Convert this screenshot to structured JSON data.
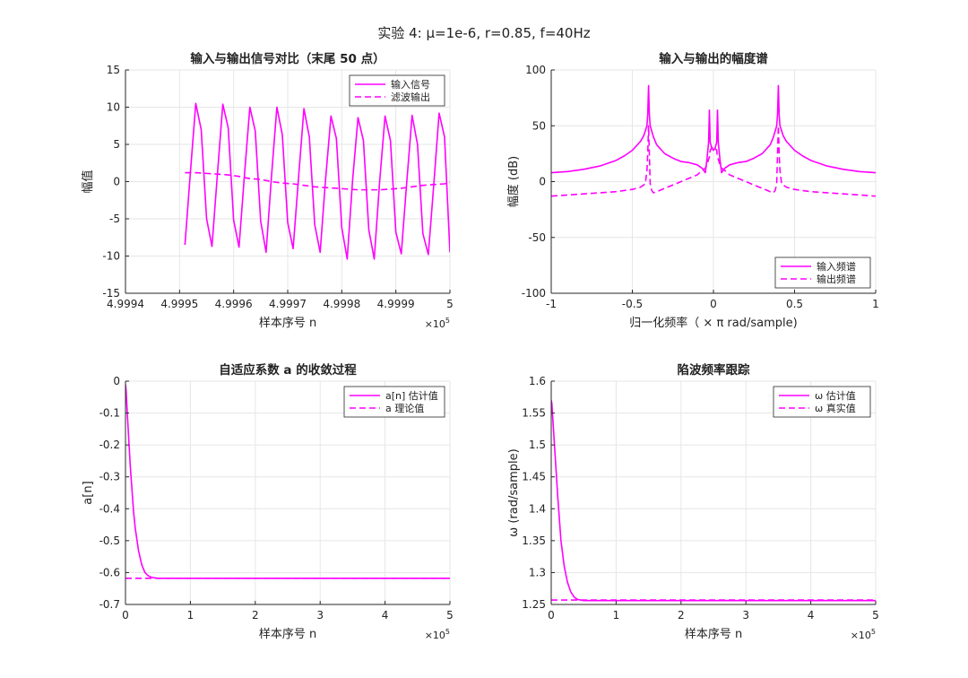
{
  "suptitle": "实验 4:  μ=1e-6,  r=0.85,  f=40Hz",
  "colors": {
    "series": "#ff00ff",
    "axis": "#262626",
    "grid": "#e6e6e6"
  },
  "chart_data": [
    {
      "id": "time",
      "type": "line",
      "title": "输入与输出信号对比（末尾 50 点）",
      "xlabel": "样本序号 n",
      "ylabel": "幅值",
      "x_exponent": "×10",
      "x_exponent_power": "5",
      "xlim": [
        4.9994,
        5.0
      ],
      "ylim": [
        -15,
        15
      ],
      "xticks": [
        4.9994,
        4.9995,
        4.9996,
        4.9997,
        4.9998,
        4.9999,
        5
      ],
      "xtick_labels": [
        "4.9994",
        "4.9995",
        "4.9996",
        "4.9997",
        "4.9998",
        "4.9999",
        "5"
      ],
      "yticks": [
        -15,
        -10,
        -5,
        0,
        5,
        10,
        15
      ],
      "ytick_labels": [
        "-15",
        "-10",
        "-5",
        "0",
        "5",
        "10",
        "15"
      ],
      "grid": true,
      "legend_position": "top-right",
      "series": [
        {
          "name": "输入信号",
          "style": "solid",
          "x": [
            4.99951,
            4.99952,
            4.99953,
            4.99954,
            4.99955,
            4.99956,
            4.99957,
            4.99958,
            4.99959,
            4.9996,
            4.99961,
            4.99962,
            4.99963,
            4.99964,
            4.99965,
            4.99966,
            4.99967,
            4.99968,
            4.99969,
            4.9997,
            4.99971,
            4.99972,
            4.99973,
            4.99974,
            4.99975,
            4.99976,
            4.99977,
            4.99978,
            4.99979,
            4.9998,
            4.99981,
            4.99982,
            4.99983,
            4.99984,
            4.99985,
            4.99986,
            4.99987,
            4.99988,
            4.99989,
            4.9999,
            4.99991,
            4.99992,
            4.99993,
            4.99994,
            4.99995,
            4.99996,
            4.99997,
            4.99998,
            4.99999,
            5.0
          ],
          "y": [
            -8.5,
            1.2,
            10.5,
            7.0,
            -5.0,
            -8.7,
            1.0,
            10.4,
            7.2,
            -5.2,
            -8.8,
            0.9,
            10.0,
            6.8,
            -5.3,
            -9.5,
            0.7,
            10.0,
            6.3,
            -5.5,
            -9.0,
            0.5,
            9.8,
            6.0,
            -5.8,
            -9.5,
            0.3,
            8.8,
            5.8,
            -6.2,
            -10.4,
            0.2,
            8.6,
            5.5,
            -6.5,
            -10.4,
            0.0,
            8.8,
            5.5,
            -6.8,
            -9.7,
            -0.2,
            8.9,
            5.0,
            -7.0,
            -9.8,
            -0.5,
            9.2,
            6.0,
            -9.5
          ]
        },
        {
          "name": "滤波输出",
          "style": "dashed",
          "x": [
            4.99951,
            4.99953,
            4.99955,
            4.99957,
            4.99959,
            4.99961,
            4.99963,
            4.99965,
            4.99967,
            4.99969,
            4.99971,
            4.99973,
            4.99975,
            4.99977,
            4.99979,
            4.99981,
            4.99983,
            4.99985,
            4.99987,
            4.99989,
            4.99991,
            4.99993,
            4.99995,
            4.99997,
            4.99999,
            5.0
          ],
          "y": [
            1.2,
            1.2,
            1.1,
            1.0,
            0.9,
            0.7,
            0.4,
            0.3,
            0.0,
            -0.2,
            -0.3,
            -0.5,
            -0.7,
            -0.8,
            -0.9,
            -1.0,
            -1.1,
            -1.1,
            -1.1,
            -1.0,
            -0.9,
            -0.7,
            -0.5,
            -0.4,
            -0.3,
            -0.1
          ]
        }
      ]
    },
    {
      "id": "spectrum",
      "type": "line",
      "title": "输入与输出的幅度谱",
      "xlabel": "归一化频率（ × π   rad/sample)",
      "ylabel": "幅度 (dB)",
      "xlim": [
        -1,
        1
      ],
      "ylim": [
        -100,
        100
      ],
      "xticks": [
        -1,
        -0.5,
        0,
        0.5,
        1
      ],
      "xtick_labels": [
        "-1",
        "-0.5",
        "0",
        "0.5",
        "1"
      ],
      "yticks": [
        -100,
        -50,
        0,
        50,
        100
      ],
      "ytick_labels": [
        "-100",
        "-50",
        "0",
        "50",
        "100"
      ],
      "grid": true,
      "legend_position": "bottom-right",
      "series": [
        {
          "name": "输入频谱",
          "style": "solid",
          "x": [
            -1.0,
            -0.9,
            -0.8,
            -0.7,
            -0.6,
            -0.55,
            -0.5,
            -0.45,
            -0.43,
            -0.41,
            -0.405,
            -0.4,
            -0.395,
            -0.39,
            -0.37,
            -0.35,
            -0.3,
            -0.25,
            -0.2,
            -0.15,
            -0.1,
            -0.07,
            -0.05,
            -0.04,
            -0.03,
            -0.025,
            -0.02,
            -0.01,
            0.0,
            0.01,
            0.02,
            0.025,
            0.03,
            0.04,
            0.05,
            0.07,
            0.1,
            0.15,
            0.2,
            0.25,
            0.3,
            0.35,
            0.37,
            0.39,
            0.395,
            0.4,
            0.405,
            0.41,
            0.43,
            0.45,
            0.5,
            0.55,
            0.6,
            0.7,
            0.8,
            0.9,
            1.0
          ],
          "y": [
            8,
            9,
            11,
            14,
            19,
            23,
            28,
            36,
            41,
            50,
            60,
            86,
            60,
            50,
            40,
            33,
            25,
            21,
            18,
            17,
            15,
            12,
            8,
            20,
            35,
            64,
            35,
            30,
            28,
            30,
            35,
            64,
            35,
            20,
            8,
            12,
            15,
            17,
            18,
            21,
            25,
            33,
            40,
            50,
            60,
            86,
            60,
            50,
            41,
            36,
            28,
            23,
            19,
            14,
            11,
            9,
            8
          ]
        },
        {
          "name": "输出频谱",
          "style": "dashed",
          "x": [
            -1.0,
            -0.9,
            -0.8,
            -0.7,
            -0.6,
            -0.5,
            -0.45,
            -0.42,
            -0.41,
            -0.405,
            -0.4,
            -0.395,
            -0.39,
            -0.38,
            -0.37,
            -0.35,
            -0.3,
            -0.25,
            -0.2,
            -0.15,
            -0.1,
            -0.07,
            -0.05,
            -0.04,
            -0.03,
            -0.025,
            -0.02,
            -0.01,
            0.0,
            0.01,
            0.02,
            0.025,
            0.03,
            0.04,
            0.05,
            0.07,
            0.1,
            0.15,
            0.2,
            0.25,
            0.3,
            0.35,
            0.37,
            0.38,
            0.39,
            0.395,
            0.4,
            0.405,
            0.41,
            0.42,
            0.45,
            0.5,
            0.6,
            0.7,
            0.8,
            0.9,
            1.0
          ],
          "y": [
            -13,
            -12,
            -11,
            -10,
            -9,
            -7,
            -5,
            -2,
            10,
            25,
            50,
            25,
            -2,
            -8,
            -10,
            -9,
            -6,
            -3,
            0,
            3,
            6,
            10,
            12,
            15,
            20,
            22,
            28,
            30,
            31,
            30,
            28,
            22,
            20,
            15,
            12,
            10,
            6,
            3,
            0,
            -3,
            -6,
            -9,
            -10,
            -8,
            -2,
            25,
            50,
            25,
            10,
            -2,
            -5,
            -7,
            -9,
            -10,
            -11,
            -12,
            -13
          ]
        }
      ]
    },
    {
      "id": "coef",
      "type": "line",
      "title": "自适应系数 a 的收敛过程",
      "xlabel": "样本序号 n",
      "ylabel": "a[n]",
      "x_exponent": "×10",
      "x_exponent_power": "5",
      "xlim": [
        0,
        5
      ],
      "ylim": [
        -0.7,
        0
      ],
      "xticks": [
        0,
        1,
        2,
        3,
        4,
        5
      ],
      "xtick_labels": [
        "0",
        "1",
        "2",
        "3",
        "4",
        "5"
      ],
      "yticks": [
        -0.7,
        -0.6,
        -0.5,
        -0.4,
        -0.3,
        -0.2,
        -0.1,
        0
      ],
      "ytick_labels": [
        "-0.7",
        "-0.6",
        "-0.5",
        "-0.4",
        "-0.3",
        "-0.2",
        "-0.1",
        "0"
      ],
      "grid": true,
      "legend_position": "top-right",
      "series": [
        {
          "name": "a[n] 估计值",
          "style": "solid",
          "x": [
            0,
            0.01,
            0.025,
            0.05,
            0.075,
            0.1,
            0.125,
            0.15,
            0.2,
            0.25,
            0.3,
            0.35,
            0.4,
            0.5,
            0.7,
            1,
            2,
            3,
            4,
            5
          ],
          "y": [
            -0.01,
            -0.03,
            -0.09,
            -0.18,
            -0.27,
            -0.34,
            -0.41,
            -0.46,
            -0.53,
            -0.575,
            -0.6,
            -0.61,
            -0.615,
            -0.618,
            -0.618,
            -0.618,
            -0.618,
            -0.618,
            -0.618,
            -0.618
          ]
        },
        {
          "name": "a 理论值",
          "style": "dashed",
          "x": [
            0,
            5
          ],
          "y": [
            -0.618,
            -0.618
          ]
        }
      ]
    },
    {
      "id": "freq",
      "type": "line",
      "title": "陷波频率跟踪",
      "xlabel": "样本序号 n",
      "ylabel": "ω  (rad/sample)",
      "x_exponent": "×10",
      "x_exponent_power": "5",
      "xlim": [
        0,
        5
      ],
      "ylim": [
        1.25,
        1.6
      ],
      "xticks": [
        0,
        1,
        2,
        3,
        4,
        5
      ],
      "xtick_labels": [
        "0",
        "1",
        "2",
        "3",
        "4",
        "5"
      ],
      "yticks": [
        1.25,
        1.3,
        1.35,
        1.4,
        1.45,
        1.5,
        1.55,
        1.6
      ],
      "ytick_labels": [
        "1.25",
        "1.3",
        "1.35",
        "1.4",
        "1.45",
        "1.5",
        "1.55",
        "1.6"
      ],
      "grid": true,
      "legend_position": "top-right",
      "series": [
        {
          "name": "ω  估计值",
          "style": "solid",
          "x": [
            0,
            0.01,
            0.025,
            0.05,
            0.075,
            0.1,
            0.125,
            0.15,
            0.2,
            0.25,
            0.3,
            0.35,
            0.4,
            0.5,
            0.7,
            1,
            2,
            3,
            4,
            5
          ],
          "y": [
            1.57,
            1.565,
            1.54,
            1.5,
            1.46,
            1.42,
            1.385,
            1.35,
            1.31,
            1.285,
            1.27,
            1.262,
            1.258,
            1.256,
            1.256,
            1.256,
            1.256,
            1.256,
            1.256,
            1.256
          ]
        },
        {
          "name": "ω  真实值",
          "style": "dashed",
          "x": [
            0,
            5
          ],
          "y": [
            1.257,
            1.257
          ]
        }
      ]
    }
  ]
}
